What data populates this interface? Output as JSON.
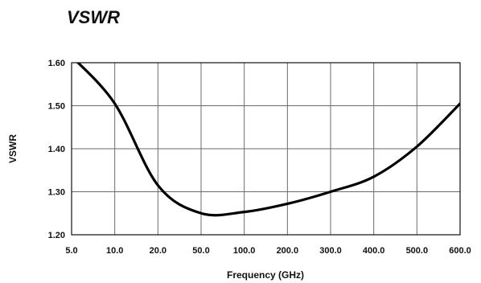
{
  "chart_data": {
    "type": "line",
    "title": "VSWR",
    "xlabel": "Frequency (GHz)",
    "ylabel": "VSWR",
    "categories": [
      "5.0",
      "10.0",
      "20.0",
      "50.0",
      "100.0",
      "200.0",
      "300.0",
      "400.0",
      "500.0",
      "600.0"
    ],
    "y_ticks": [
      "1.20",
      "1.30",
      "1.40",
      "1.50",
      "1.60"
    ],
    "ylim": [
      1.2,
      1.6
    ],
    "grid": true,
    "series": [
      {
        "x": [
          "5.0",
          "10.0",
          "20.0",
          "50.0",
          "100.0",
          "200.0",
          "300.0",
          "400.0",
          "500.0",
          "600.0"
        ],
        "values": [
          1.615,
          1.505,
          1.315,
          1.25,
          1.253,
          1.272,
          1.3,
          1.335,
          1.405,
          1.505
        ]
      }
    ]
  }
}
